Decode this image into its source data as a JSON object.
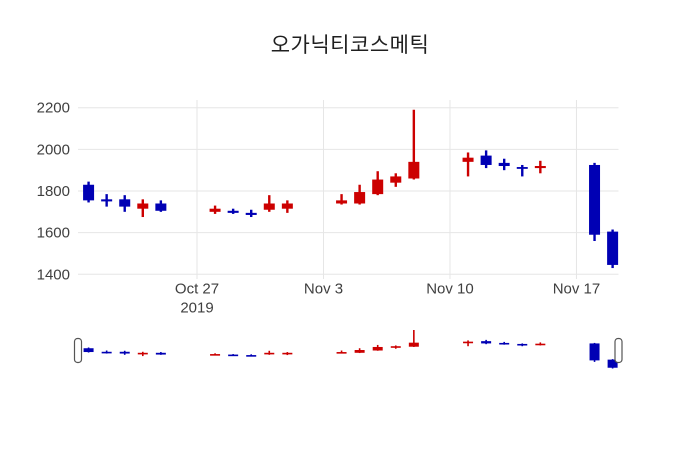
{
  "chart_data": {
    "type": "candlestick",
    "title": "오가닉티코스메틱",
    "xlabel": "",
    "ylabel": "",
    "legend": null,
    "grid": true,
    "colors": {
      "up": "#cc0000",
      "down": "#0000b4"
    },
    "y_axis": {
      "ticks": [
        1400,
        1600,
        1800,
        2000,
        2200
      ],
      "range": [
        1380,
        2235
      ]
    },
    "x_axis": {
      "range": [
        "2019-10-20",
        "2019-11-20"
      ],
      "ticks": [
        {
          "label": "Oct 27",
          "sublabel": "2019",
          "date": "2019-10-27"
        },
        {
          "label": "Nov 3",
          "sublabel": "",
          "date": "2019-11-03"
        },
        {
          "label": "Nov 10",
          "sublabel": "",
          "date": "2019-11-10"
        },
        {
          "label": "Nov 17",
          "sublabel": "",
          "date": "2019-11-17"
        }
      ]
    },
    "candles": [
      {
        "date": "2019-10-21",
        "open": 1830,
        "high": 1845,
        "low": 1745,
        "close": 1755
      },
      {
        "date": "2019-10-22",
        "open": 1760,
        "high": 1785,
        "low": 1725,
        "close": 1750
      },
      {
        "date": "2019-10-23",
        "open": 1760,
        "high": 1780,
        "low": 1700,
        "close": 1725
      },
      {
        "date": "2019-10-24",
        "open": 1715,
        "high": 1760,
        "low": 1675,
        "close": 1740
      },
      {
        "date": "2019-10-25",
        "open": 1740,
        "high": 1755,
        "low": 1700,
        "close": 1705
      },
      {
        "date": "2019-10-28",
        "open": 1700,
        "high": 1730,
        "low": 1690,
        "close": 1715
      },
      {
        "date": "2019-10-29",
        "open": 1705,
        "high": 1715,
        "low": 1690,
        "close": 1695
      },
      {
        "date": "2019-10-30",
        "open": 1695,
        "high": 1710,
        "low": 1675,
        "close": 1685
      },
      {
        "date": "2019-10-31",
        "open": 1710,
        "high": 1780,
        "low": 1700,
        "close": 1740
      },
      {
        "date": "2019-11-01",
        "open": 1715,
        "high": 1755,
        "low": 1695,
        "close": 1740
      },
      {
        "date": "2019-11-04",
        "open": 1740,
        "high": 1785,
        "low": 1735,
        "close": 1755
      },
      {
        "date": "2019-11-05",
        "open": 1740,
        "high": 1830,
        "low": 1735,
        "close": 1795
      },
      {
        "date": "2019-11-06",
        "open": 1785,
        "high": 1895,
        "low": 1780,
        "close": 1855
      },
      {
        "date": "2019-11-07",
        "open": 1840,
        "high": 1885,
        "low": 1820,
        "close": 1870
      },
      {
        "date": "2019-11-08",
        "open": 1860,
        "high": 2190,
        "low": 1855,
        "close": 1940
      },
      {
        "date": "2019-11-11",
        "open": 1940,
        "high": 1985,
        "low": 1870,
        "close": 1960
      },
      {
        "date": "2019-11-12",
        "open": 1970,
        "high": 1995,
        "low": 1910,
        "close": 1925
      },
      {
        "date": "2019-11-13",
        "open": 1935,
        "high": 1955,
        "low": 1900,
        "close": 1920
      },
      {
        "date": "2019-11-14",
        "open": 1915,
        "high": 1925,
        "low": 1870,
        "close": 1910
      },
      {
        "date": "2019-11-15",
        "open": 1910,
        "high": 1945,
        "low": 1885,
        "close": 1920
      },
      {
        "date": "2019-11-18",
        "open": 1925,
        "high": 1935,
        "low": 1560,
        "close": 1590
      },
      {
        "date": "2019-11-19",
        "open": 1605,
        "high": 1615,
        "low": 1430,
        "close": 1445
      }
    ],
    "rangeslider": {
      "present": true,
      "position": "bottom"
    }
  }
}
